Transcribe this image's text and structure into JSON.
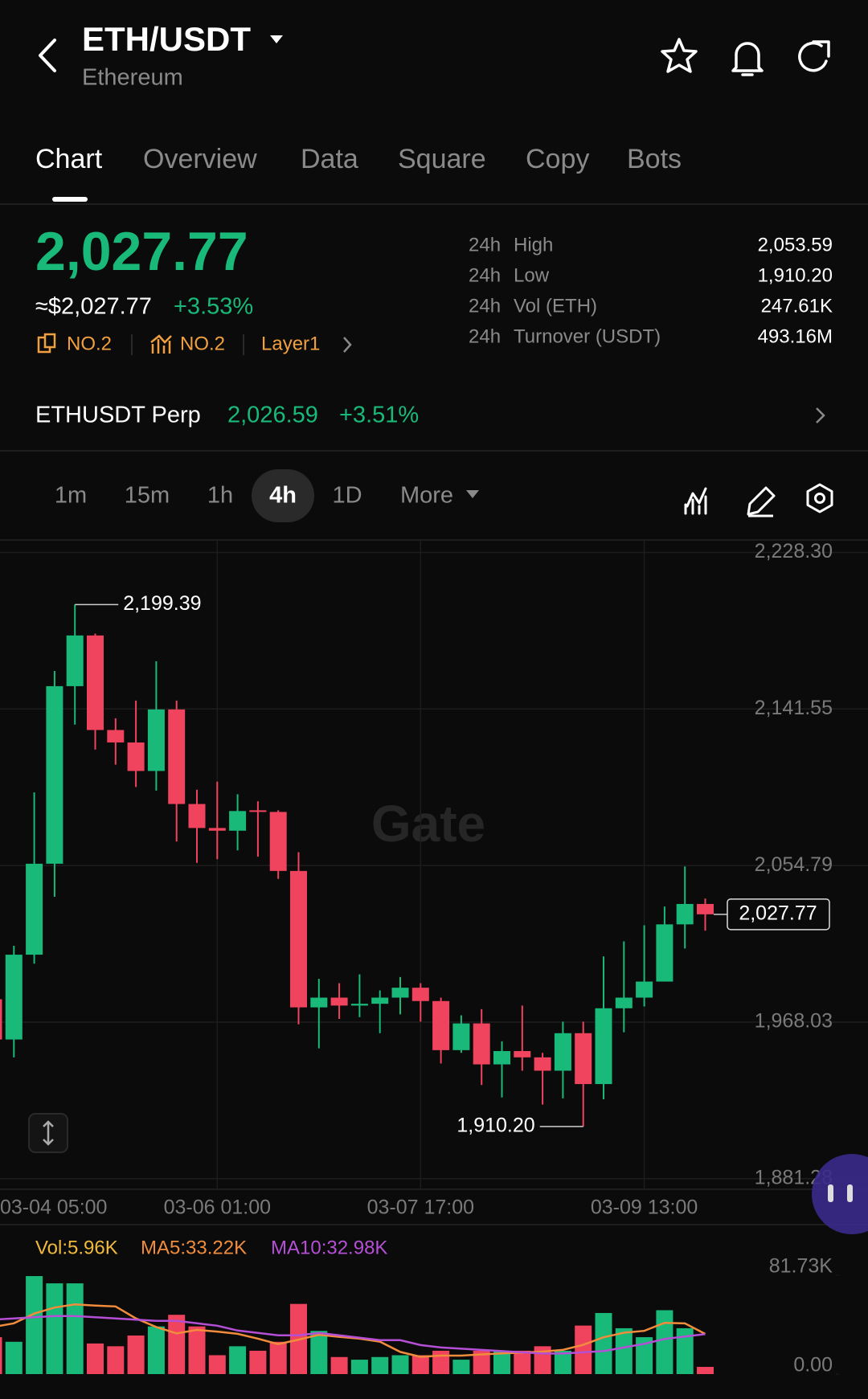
{
  "header": {
    "title": "ETH/USDT",
    "subtitle": "Ethereum"
  },
  "tabs": [
    "Chart",
    "Overview",
    "Data",
    "Square",
    "Copy",
    "Bots"
  ],
  "active_tab": 0,
  "ticker": {
    "price": "2,027.77",
    "usd_price": "≈$2,027.77",
    "change": "+3.53%",
    "tags": [
      "NO.2",
      "NO.2",
      "Layer1"
    ],
    "stats": [
      {
        "period": "24h",
        "label": "High",
        "value": "2,053.59"
      },
      {
        "period": "24h",
        "label": "Low",
        "value": "1,910.20"
      },
      {
        "period": "24h",
        "label": "Vol (ETH)",
        "value": "247.61K"
      },
      {
        "period": "24h",
        "label": "Turnover (USDT)",
        "value": "493.16M"
      }
    ]
  },
  "perp": {
    "name": "ETHUSDT Perp",
    "price": "2,026.59",
    "change": "+3.51%"
  },
  "timeframes": [
    "1m",
    "15m",
    "1h",
    "4h",
    "1D",
    "More"
  ],
  "active_timeframe": 3,
  "watermark": "Gate",
  "chart_data": [
    {
      "type": "candlestick",
      "categories": [
        "03-04 05:00",
        null,
        null,
        null,
        null,
        null,
        null,
        null,
        null,
        null,
        null,
        "03-06 01:00",
        null,
        null,
        null,
        null,
        null,
        null,
        null,
        null,
        null,
        "03-07 17:00",
        null,
        null,
        null,
        null,
        null,
        null,
        null,
        null,
        null,
        null,
        "03-09 13:00",
        null,
        null,
        null
      ],
      "open": [
        1980.7,
        1958.4,
        2005.4,
        2055.8,
        2154.2,
        2182.3,
        2129.9,
        2123.0,
        2107.2,
        2141.3,
        2088.9,
        2075.6,
        2074.1,
        2085.4,
        2084.5,
        2051.8,
        1976.2,
        1981.6,
        1977.2,
        1978.2,
        1981.6,
        1987.1,
        1979.7,
        1952.5,
        1967.3,
        1944.6,
        1952.0,
        1948.5,
        1941.1,
        1961.9,
        1933.7,
        1975.7,
        1981.6,
        1990.5,
        2022.2,
        2033.5
      ],
      "high": [
        1983.1,
        2010.3,
        2095.3,
        2162.6,
        2199.39,
        2183.3,
        2136.4,
        2146.2,
        2168.0,
        2146.2,
        2096.8,
        2101.3,
        2094.3,
        2090.4,
        2085.4,
        2062.2,
        1992.0,
        1989.6,
        1994.5,
        1985.6,
        1993.0,
        1989.6,
        1981.6,
        1971.8,
        1975.2,
        1957.4,
        1977.2,
        1951.0,
        1968.3,
        1968.3,
        2004.4,
        2012.8,
        2021.7,
        2032.1,
        2054.3,
        2036.5
      ],
      "low": [
        1955.9,
        1948.5,
        2000.4,
        2037.5,
        2132.9,
        2119.1,
        2110.7,
        2098.3,
        2096.3,
        2068.1,
        2056.3,
        2058.3,
        2063.2,
        2059.7,
        2047.4,
        1966.8,
        1953.5,
        1969.8,
        1970.8,
        1961.9,
        1972.3,
        1968.3,
        1945.1,
        1951.0,
        1933.2,
        1926.3,
        1941.1,
        1922.3,
        1925.8,
        1910.2,
        1925.3,
        1962.4,
        1976.7,
        1990.5,
        2008.8,
        2018.7
      ],
      "close": [
        1958.4,
        2005.4,
        2055.8,
        2154.2,
        2182.3,
        2129.9,
        2123.0,
        2107.2,
        2141.3,
        2088.9,
        2075.6,
        2074.1,
        2085.0,
        2084.5,
        2051.8,
        1976.2,
        1981.6,
        1977.2,
        1978.2,
        1981.6,
        1987.1,
        1979.7,
        1952.5,
        1967.3,
        1944.6,
        1952.0,
        1948.5,
        1941.1,
        1961.9,
        1933.7,
        1975.7,
        1981.6,
        1990.5,
        2022.2,
        2033.5,
        2027.77
      ],
      "up_color": "#19b97a",
      "down_color": "#f0435d",
      "ylim": [
        1875.4,
        2235.2
      ],
      "yticks": [
        {
          "value": 2228.3,
          "label": "2,228.30"
        },
        {
          "value": 2141.55,
          "label": "2,141.55"
        },
        {
          "value": 2054.79,
          "label": "2,054.79"
        },
        {
          "value": 1968.03,
          "label": "1,968.03"
        },
        {
          "value": 1881.28,
          "label": "1,881.28"
        }
      ],
      "grid": true,
      "high_marker": {
        "value": 2199.39,
        "label": "2,199.39"
      },
      "low_marker": {
        "value": 1910.2,
        "label": "1,910.20"
      },
      "last_price": {
        "value": 2027.77,
        "label": "2,027.77"
      }
    },
    {
      "type": "bar",
      "legend": [
        "Vol:5.96K",
        "MA5:33.22K",
        "MA10:32.98K"
      ],
      "series": [
        {
          "kind": "bar",
          "color": "#f0b93c",
          "values": [
            30.5,
            26.7,
            81.0,
            75.0,
            75.0,
            25.3,
            23.0,
            31.9,
            39.4,
            49.0,
            39.4,
            15.6,
            23.0,
            19.3,
            26.7,
            58.0,
            35.7,
            14.1,
            11.9,
            14.1,
            15.6,
            15.6,
            19.3,
            11.9,
            19.3,
            19.3,
            19.3,
            23.0,
            19.3,
            40.1,
            50.5,
            37.9,
            30.5,
            52.8,
            37.9,
            5.96
          ]
        },
        {
          "kind": "line",
          "color": "#f08c3c",
          "values": [
            39,
            42,
            50,
            55,
            57.6,
            56.6,
            55.9,
            46.0,
            38.9,
            33.7,
            36.5,
            35.1,
            33.3,
            29.3,
            24.8,
            28.5,
            32.5,
            30.8,
            29.3,
            26.8,
            18.3,
            14.3,
            15.3,
            15.3,
            16.3,
            17.1,
            17.8,
            18.6,
            20.0,
            24.2,
            30.4,
            34.2,
            35.7,
            42.4,
            41.9,
            33.22
          ]
        },
        {
          "kind": "line",
          "color": "#b44fd6",
          "values": [
            45,
            46,
            47,
            48,
            48,
            47,
            46,
            45,
            44,
            44,
            42,
            40,
            36,
            34,
            32,
            32,
            34,
            32,
            30,
            28,
            28,
            24,
            22,
            21,
            20,
            19,
            18,
            17,
            17,
            18,
            19,
            22,
            25,
            29,
            31,
            32.98
          ]
        }
      ],
      "ylim": [
        0,
        96.3
      ],
      "yticks": [
        {
          "value": 81.73,
          "label": "81.73K"
        },
        {
          "value": 0,
          "label": "0.00"
        }
      ]
    }
  ]
}
